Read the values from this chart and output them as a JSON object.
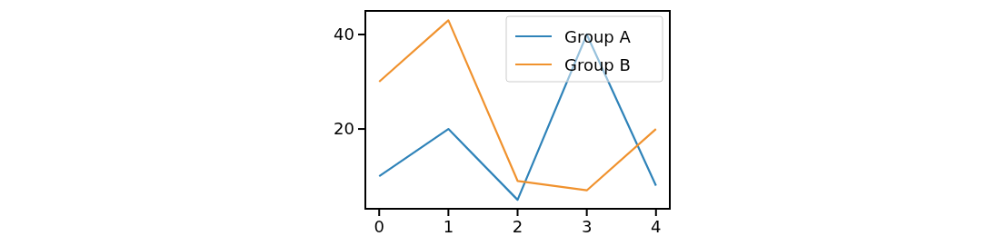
{
  "chart_data": {
    "type": "line",
    "x": [
      0,
      1,
      2,
      3,
      4
    ],
    "xlim": [
      -0.2,
      4.2
    ],
    "xticks": [
      0,
      1,
      2,
      3,
      4
    ],
    "ylim": [
      3.1,
      45
    ],
    "yticks": [
      20,
      40
    ],
    "legend": "top right",
    "grid": false,
    "series": [
      {
        "name": "Group A",
        "color": "#2f83b9",
        "values": [
          10,
          20,
          5,
          40,
          8
        ]
      },
      {
        "name": "Group B",
        "color": "#f0922e",
        "values": [
          30,
          43,
          9,
          7,
          20
        ]
      }
    ]
  }
}
